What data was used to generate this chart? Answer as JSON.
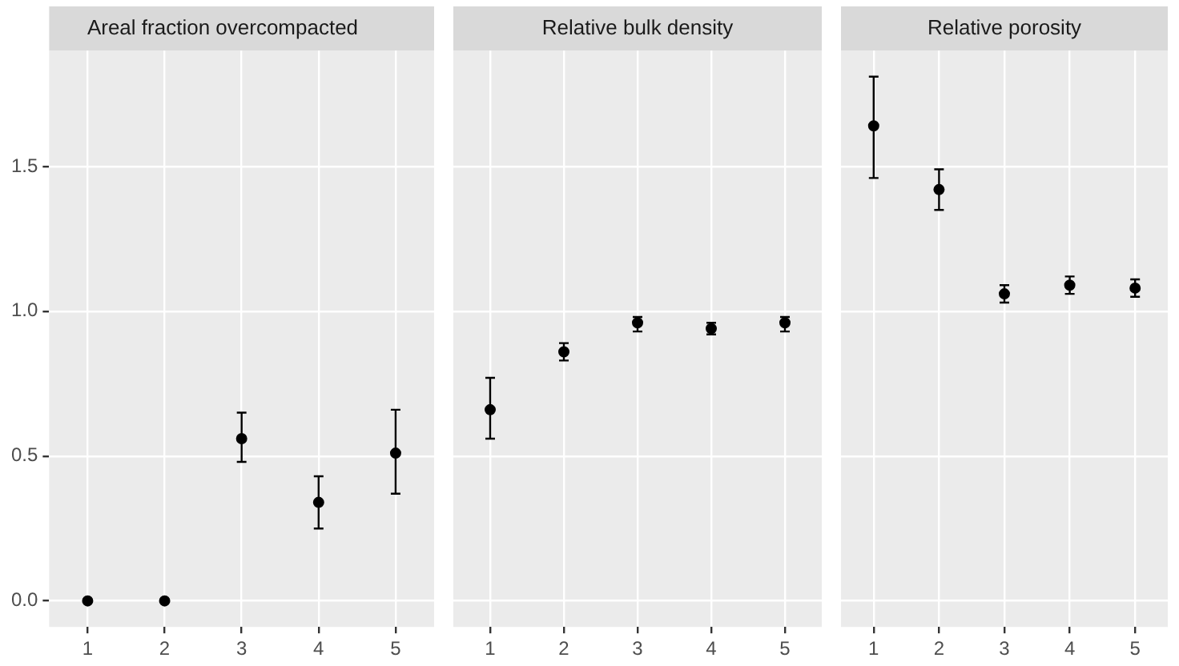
{
  "chart_data": [
    {
      "type": "scatter",
      "title": "Areal fraction overcompacted",
      "categories": [
        "1",
        "2",
        "3",
        "4",
        "5"
      ],
      "values": [
        0,
        0,
        0.56,
        0.34,
        0.51
      ],
      "errors": [
        null,
        null,
        [
          0.48,
          0.65
        ],
        [
          0.25,
          0.43
        ],
        [
          0.37,
          0.66
        ]
      ],
      "color": "#000000",
      "ylim": [
        -0.09,
        1.9
      ],
      "yticks": [
        {
          "value": 0,
          "label": "0.0"
        },
        {
          "value": 0.5,
          "label": "0.5"
        },
        {
          "value": 1,
          "label": "1.0"
        },
        {
          "value": 1.5,
          "label": "1.5"
        }
      ],
      "grid": true,
      "marker": "circle"
    },
    {
      "type": "scatter",
      "title": "Relative bulk density",
      "categories": [
        "1",
        "2",
        "3",
        "4",
        "5"
      ],
      "values": [
        0.66,
        0.86,
        0.96,
        0.94,
        0.96
      ],
      "errors": [
        [
          0.56,
          0.77
        ],
        [
          0.83,
          0.89
        ],
        [
          0.93,
          0.98
        ],
        [
          0.92,
          0.96
        ],
        [
          0.93,
          0.98
        ]
      ],
      "color": "#000000",
      "ylim": [
        -0.09,
        1.9
      ],
      "yticks": [
        0,
        0.5,
        1,
        1.5
      ],
      "tick_labels": "x",
      "grid": true,
      "marker": "circle"
    },
    {
      "type": "scatter",
      "title": "Relative porosity",
      "categories": [
        "1",
        "2",
        "3",
        "4",
        "5"
      ],
      "values": [
        1.64,
        1.42,
        1.06,
        1.09,
        1.08
      ],
      "errors": [
        [
          1.46,
          1.81
        ],
        [
          1.35,
          1.49
        ],
        [
          1.03,
          1.09
        ],
        [
          1.06,
          1.12
        ],
        [
          1.05,
          1.11
        ]
      ],
      "color": "#000000",
      "ylim": [
        -0.09,
        1.9
      ],
      "yticks": [
        0,
        0.5,
        1,
        1.5
      ],
      "tick_labels": "x",
      "grid": true,
      "marker": "circle"
    }
  ]
}
